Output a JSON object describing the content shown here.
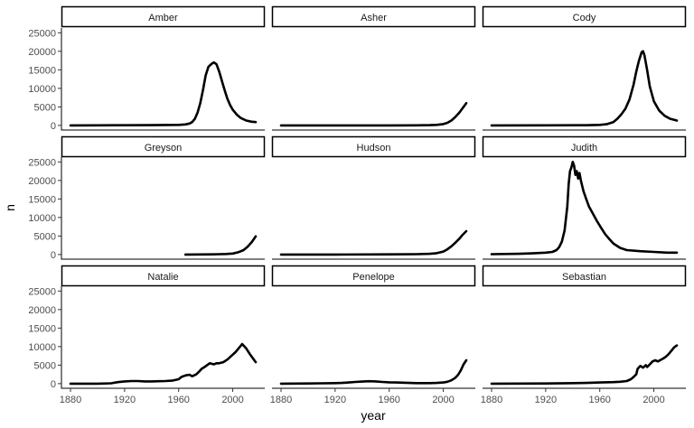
{
  "chart_data": {
    "type": "line",
    "layout": "facet-grid 3x3",
    "xlabel": "year",
    "ylabel": "n",
    "xlim": [
      1880,
      2017
    ],
    "ylim": [
      0,
      25000
    ],
    "x_ticks": [
      1880,
      1920,
      1960,
      2000
    ],
    "y_ticks": [
      0,
      5000,
      10000,
      15000,
      20000,
      25000
    ],
    "grid": false,
    "line_color": "#000000",
    "panels": [
      {
        "name": "Amber",
        "x": [
          1880,
          1900,
          1920,
          1940,
          1960,
          1965,
          1968,
          1970,
          1972,
          1974,
          1976,
          1978,
          1980,
          1982,
          1984,
          1986,
          1988,
          1990,
          1992,
          1994,
          1996,
          1998,
          2000,
          2003,
          2006,
          2010,
          2014,
          2017
        ],
        "y": [
          0,
          20,
          40,
          60,
          150,
          250,
          500,
          900,
          1800,
          3500,
          6000,
          9500,
          13500,
          15800,
          16500,
          17000,
          16500,
          14500,
          12000,
          9500,
          7200,
          5500,
          4200,
          2900,
          2000,
          1300,
          1000,
          900
        ]
      },
      {
        "name": "Asher",
        "x": [
          1880,
          1920,
          1960,
          1980,
          1990,
          1995,
          2000,
          2003,
          2006,
          2009,
          2012,
          2014,
          2017
        ],
        "y": [
          0,
          0,
          0,
          10,
          60,
          150,
          350,
          700,
          1300,
          2300,
          3500,
          4500,
          6000
        ]
      },
      {
        "name": "Cody",
        "x": [
          1880,
          1920,
          1950,
          1960,
          1965,
          1970,
          1973,
          1976,
          1979,
          1982,
          1985,
          1987,
          1989,
          1991,
          1992,
          1993,
          1995,
          1997,
          2000,
          2004,
          2008,
          2012,
          2017
        ],
        "y": [
          0,
          10,
          40,
          150,
          300,
          900,
          1800,
          3000,
          4500,
          7000,
          11000,
          14500,
          17500,
          19800,
          20000,
          19000,
          15000,
          10500,
          6500,
          4000,
          2600,
          1800,
          1300
        ]
      },
      {
        "name": "Greyson",
        "x": [
          1965,
          1975,
          1985,
          1990,
          1995,
          2000,
          2004,
          2008,
          2011,
          2014,
          2017
        ],
        "y": [
          0,
          10,
          40,
          80,
          150,
          250,
          600,
          1200,
          2100,
          3300,
          4900
        ]
      },
      {
        "name": "Hudson",
        "x": [
          1880,
          1920,
          1960,
          1980,
          1990,
          1995,
          2000,
          2003,
          2006,
          2009,
          2012,
          2014,
          2017
        ],
        "y": [
          0,
          0,
          30,
          100,
          200,
          350,
          800,
          1400,
          2200,
          3200,
          4300,
          5200,
          6300
        ]
      },
      {
        "name": "Judith",
        "x": [
          1880,
          1900,
          1910,
          1920,
          1925,
          1928,
          1930,
          1932,
          1934,
          1936,
          1937,
          1938,
          1939,
          1940,
          1941,
          1942,
          1943,
          1944,
          1945,
          1946,
          1947,
          1948,
          1950,
          1952,
          1955,
          1958,
          1961,
          1964,
          1967,
          1970,
          1975,
          1980,
          1990,
          2000,
          2010,
          2017
        ],
        "y": [
          100,
          200,
          300,
          500,
          700,
          1200,
          2000,
          3500,
          6500,
          13000,
          19000,
          22500,
          23500,
          25000,
          24000,
          21500,
          22500,
          20500,
          22000,
          20000,
          18500,
          17000,
          15000,
          13000,
          11000,
          9000,
          7200,
          5500,
          4200,
          3000,
          1800,
          1200,
          900,
          700,
          500,
          500
        ]
      },
      {
        "name": "Natalie",
        "x": [
          1880,
          1900,
          1910,
          1915,
          1920,
          1925,
          1930,
          1935,
          1940,
          1945,
          1950,
          1955,
          1960,
          1962,
          1965,
          1968,
          1970,
          1973,
          1975,
          1977,
          1980,
          1983,
          1986,
          1988,
          1990,
          1993,
          1996,
          1999,
          2002,
          2005,
          2007,
          2010,
          2013,
          2017
        ],
        "y": [
          0,
          0,
          100,
          400,
          600,
          700,
          700,
          600,
          600,
          650,
          700,
          800,
          1200,
          1800,
          2200,
          2400,
          2000,
          2500,
          3200,
          4000,
          4700,
          5500,
          5200,
          5500,
          5500,
          5800,
          6500,
          7500,
          8500,
          9800,
          10700,
          9500,
          7800,
          5800
        ]
      },
      {
        "name": "Penelope",
        "x": [
          1880,
          1900,
          1910,
          1920,
          1925,
          1930,
          1935,
          1940,
          1945,
          1950,
          1955,
          1960,
          1965,
          1970,
          1975,
          1980,
          1985,
          1990,
          1995,
          2000,
          2003,
          2006,
          2009,
          2011,
          2013,
          2015,
          2017
        ],
        "y": [
          0,
          50,
          100,
          150,
          200,
          300,
          450,
          550,
          650,
          600,
          450,
          350,
          300,
          250,
          200,
          150,
          150,
          150,
          200,
          300,
          500,
          900,
          1600,
          2400,
          3600,
          5200,
          6300
        ]
      },
      {
        "name": "Sebastian",
        "x": [
          1880,
          1920,
          1950,
          1960,
          1970,
          1975,
          1980,
          1983,
          1985,
          1987,
          1988,
          1990,
          1992,
          1994,
          1995,
          1997,
          1999,
          2001,
          2003,
          2005,
          2007,
          2009,
          2011,
          2013,
          2015,
          2017
        ],
        "y": [
          0,
          50,
          200,
          300,
          400,
          500,
          700,
          1200,
          1800,
          2500,
          4000,
          4800,
          4300,
          5000,
          4500,
          5200,
          6000,
          6300,
          6000,
          6400,
          6800,
          7300,
          8000,
          8900,
          9800,
          10300
        ]
      }
    ]
  }
}
